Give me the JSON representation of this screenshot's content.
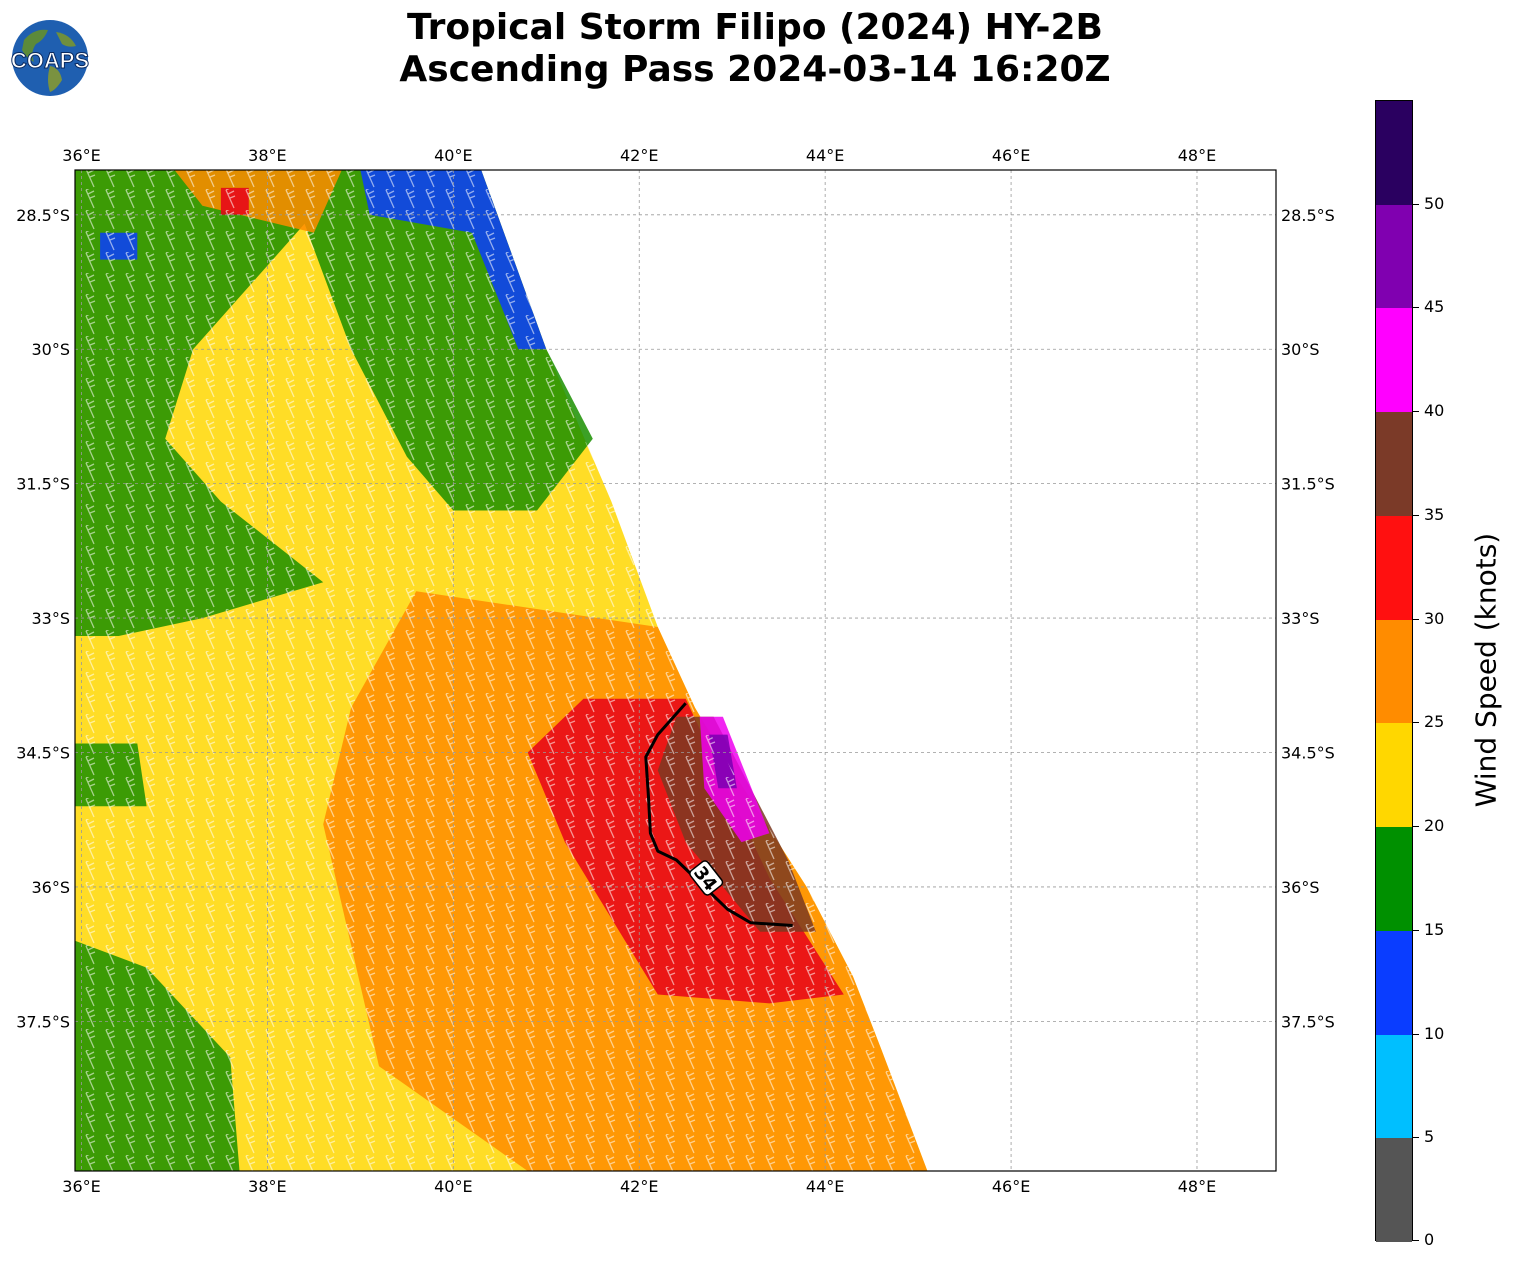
{
  "title_line1": "Tropical Storm Filipo (2024) HY-2B",
  "title_line2": "Ascending Pass 2024-03-14 16:20Z",
  "logo_text": "COAPS",
  "map": {
    "lon_range": [
      35.93,
      48.85
    ],
    "lat_range": [
      -39.17,
      -28.0
    ],
    "lon_ticks": [
      "36°E",
      "38°E",
      "40°E",
      "42°E",
      "44°E",
      "46°E",
      "48°E"
    ],
    "lon_tick_values": [
      36,
      38,
      40,
      42,
      44,
      46,
      48
    ],
    "lat_ticks": [
      "28.5°S",
      "30°S",
      "31.5°S",
      "33°S",
      "34.5°S",
      "36°S",
      "37.5°S"
    ],
    "lat_tick_values": [
      -28.5,
      -30,
      -31.5,
      -33,
      -34.5,
      -36,
      -37.5
    ],
    "grid": true,
    "swath_east_edge": [
      [
        40.3,
        -28.0
      ],
      [
        41.0,
        -30.0
      ],
      [
        41.7,
        -31.7
      ],
      [
        42.2,
        -33.1
      ],
      [
        42.6,
        -34.0
      ],
      [
        43.0,
        -34.7
      ],
      [
        43.8,
        -36.0
      ],
      [
        44.3,
        -37.0
      ],
      [
        44.6,
        -37.8
      ],
      [
        45.1,
        -39.17
      ]
    ]
  },
  "wind_field": {
    "layers": [
      {
        "color": "#1a8f00",
        "speed_kt": 17,
        "region": [
          [
            35.93,
            -28.0
          ],
          [
            40.3,
            -28.0
          ],
          [
            41.0,
            -30.0
          ],
          [
            41.5,
            -31.0
          ],
          [
            40.9,
            -31.8
          ],
          [
            40.0,
            -31.8
          ],
          [
            39.5,
            -31.2
          ],
          [
            38.9,
            -30.0
          ],
          [
            38.4,
            -28.6
          ],
          [
            37.2,
            -30.0
          ],
          [
            36.9,
            -31.0
          ],
          [
            37.5,
            -31.7
          ],
          [
            38.6,
            -32.6
          ],
          [
            37.3,
            -33.0
          ],
          [
            36.4,
            -33.2
          ],
          [
            35.93,
            -33.2
          ]
        ]
      },
      {
        "color": "#1a8f00",
        "speed_kt": 17,
        "region": [
          [
            35.93,
            -34.4
          ],
          [
            36.6,
            -34.4
          ],
          [
            36.7,
            -35.1
          ],
          [
            35.93,
            -35.1
          ]
        ]
      },
      {
        "color": "#1a8f00",
        "speed_kt": 17,
        "region": [
          [
            35.93,
            -36.6
          ],
          [
            36.7,
            -36.9
          ],
          [
            37.6,
            -37.9
          ],
          [
            37.7,
            -39.17
          ],
          [
            35.93,
            -39.17
          ]
        ]
      },
      {
        "color": "#0a3dff",
        "speed_kt": 12,
        "region": [
          [
            39.0,
            -28.0
          ],
          [
            40.3,
            -28.0
          ],
          [
            41.0,
            -30.0
          ],
          [
            40.7,
            -30.0
          ],
          [
            40.2,
            -28.7
          ],
          [
            39.1,
            -28.5
          ]
        ]
      },
      {
        "color": "#0a3dff",
        "speed_kt": 12,
        "region": [
          [
            36.2,
            -28.7
          ],
          [
            36.6,
            -28.7
          ],
          [
            36.6,
            -29.0
          ],
          [
            36.2,
            -29.0
          ]
        ]
      },
      {
        "color": "#ff8c00",
        "speed_kt": 28,
        "region": [
          [
            37.0,
            -28.0
          ],
          [
            38.8,
            -28.0
          ],
          [
            38.5,
            -28.7
          ],
          [
            37.3,
            -28.4
          ]
        ]
      },
      {
        "color": "#ff8c00",
        "speed_kt": 28,
        "region": [
          [
            39.6,
            -32.7
          ],
          [
            42.2,
            -33.1
          ],
          [
            42.6,
            -34.0
          ],
          [
            43.0,
            -34.7
          ],
          [
            43.8,
            -36.0
          ],
          [
            44.3,
            -37.0
          ],
          [
            44.6,
            -37.8
          ],
          [
            45.1,
            -39.17
          ],
          [
            40.8,
            -39.17
          ],
          [
            39.2,
            -38.0
          ],
          [
            38.6,
            -35.3
          ],
          [
            38.9,
            -34.0
          ]
        ]
      },
      {
        "color": "#e8001a",
        "speed_kt": 33,
        "region": [
          [
            41.4,
            -33.9
          ],
          [
            42.5,
            -33.9
          ],
          [
            43.4,
            -35.9
          ],
          [
            44.2,
            -37.2
          ],
          [
            43.4,
            -37.3
          ],
          [
            42.2,
            -37.2
          ],
          [
            41.2,
            -35.5
          ],
          [
            40.8,
            -34.5
          ]
        ]
      },
      {
        "color": "#e8001a",
        "speed_kt": 33,
        "region": [
          [
            37.5,
            -28.2
          ],
          [
            37.8,
            -28.2
          ],
          [
            37.8,
            -28.5
          ],
          [
            37.5,
            -28.5
          ]
        ]
      },
      {
        "color": "#7b3a22",
        "speed_kt": 37,
        "region": [
          [
            42.4,
            -34.1
          ],
          [
            42.8,
            -34.1
          ],
          [
            43.6,
            -35.7
          ],
          [
            43.9,
            -36.5
          ],
          [
            43.3,
            -36.5
          ],
          [
            42.5,
            -35.5
          ],
          [
            42.2,
            -34.7
          ]
        ]
      },
      {
        "color": "#ee00ee",
        "speed_kt": 43,
        "region": [
          [
            42.65,
            -34.1
          ],
          [
            42.9,
            -34.1
          ],
          [
            43.4,
            -35.4
          ],
          [
            43.1,
            -35.5
          ],
          [
            42.7,
            -34.9
          ]
        ]
      },
      {
        "color": "#7a00b2",
        "speed_kt": 47,
        "region": [
          [
            42.75,
            -34.3
          ],
          [
            42.95,
            -34.3
          ],
          [
            43.05,
            -34.9
          ],
          [
            42.85,
            -34.9
          ]
        ]
      }
    ],
    "background_color": "#ffd700",
    "background_speed_kt": 23
  },
  "contour": {
    "value": 34,
    "label": "34",
    "path": [
      [
        42.5,
        -33.95
      ],
      [
        42.2,
        -34.3
      ],
      [
        42.07,
        -34.55
      ],
      [
        42.1,
        -35.0
      ],
      [
        42.12,
        -35.4
      ],
      [
        42.2,
        -35.6
      ],
      [
        42.4,
        -35.7
      ],
      [
        42.55,
        -35.85
      ],
      [
        42.7,
        -36.0
      ],
      [
        42.95,
        -36.25
      ],
      [
        43.2,
        -36.4
      ],
      [
        43.65,
        -36.43
      ]
    ],
    "label_lon": 42.72,
    "label_lat": -35.9
  },
  "colorbar": {
    "label": "Wind Speed (knots)",
    "ticks": [
      "0",
      "5",
      "10",
      "15",
      "20",
      "25",
      "30",
      "35",
      "40",
      "45",
      "50"
    ],
    "bins": [
      {
        "from": 0,
        "to": 5,
        "color": "#555555"
      },
      {
        "from": 5,
        "to": 10,
        "color": "#00bfff"
      },
      {
        "from": 10,
        "to": 15,
        "color": "#0a3dff"
      },
      {
        "from": 15,
        "to": 20,
        "color": "#009000"
      },
      {
        "from": 20,
        "to": 25,
        "color": "#ffd700"
      },
      {
        "from": 25,
        "to": 30,
        "color": "#ff8c00"
      },
      {
        "from": 30,
        "to": 35,
        "color": "#ff1010"
      },
      {
        "from": 35,
        "to": 40,
        "color": "#7b3a28"
      },
      {
        "from": 40,
        "to": 45,
        "color": "#ff00ff"
      },
      {
        "from": 45,
        "to": 50,
        "color": "#8000b0"
      },
      {
        "from": 50,
        "to": 55,
        "color": "#2a0060"
      }
    ],
    "max": 55
  }
}
